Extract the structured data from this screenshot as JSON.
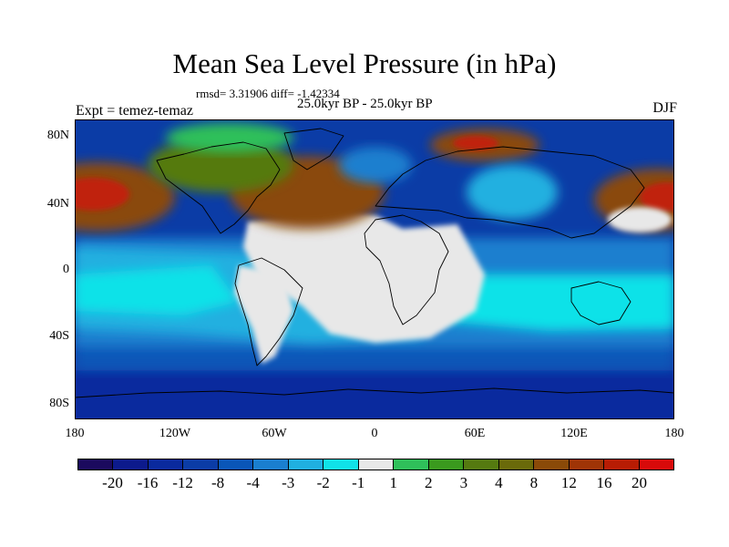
{
  "title": "Mean Sea Level Pressure (in hPa)",
  "stats_line": "rmsd= 3.31906 diff= -1.42334",
  "period_line": "25.0kyr BP - 25.0kyr BP",
  "experiment": "Expt = temez-temaz",
  "season": "DJF",
  "lat_labels": [
    "80N",
    "40N",
    "0",
    "40S",
    "80S"
  ],
  "lon_labels": [
    "180",
    "120W",
    "60W",
    "0",
    "60E",
    "120E",
    "180"
  ],
  "colorbar": {
    "colors": [
      "#1b0a5e",
      "#0c1a8c",
      "#0a2a9e",
      "#0b3ca6",
      "#0a56b8",
      "#1a7fcf",
      "#20b0e0",
      "#10e2e8",
      "#e8e8e8",
      "#2fc05a",
      "#3a9a1e",
      "#557a10",
      "#6a6a0a",
      "#8a4a08",
      "#a03406",
      "#b81c04",
      "#d80a0a"
    ],
    "labels": [
      "-20",
      "-16",
      "-12",
      "-8",
      "-4",
      "-3",
      "-2",
      "-1",
      "1",
      "2",
      "3",
      "4",
      "8",
      "12",
      "16",
      "20"
    ]
  },
  "field_colors": {
    "ocean_base": "#0b3ca6",
    "deep_blue": "#0a2a9e",
    "mid_blue": "#0a56b8",
    "light_blue": "#1a7fcf",
    "cyan": "#10e2e8",
    "sky": "#20b0e0",
    "neutral": "#e8e8e8",
    "green": "#2fc05a",
    "olive": "#557a10",
    "brown": "#8a4a08",
    "red": "#c02010",
    "coast": "#000000"
  }
}
